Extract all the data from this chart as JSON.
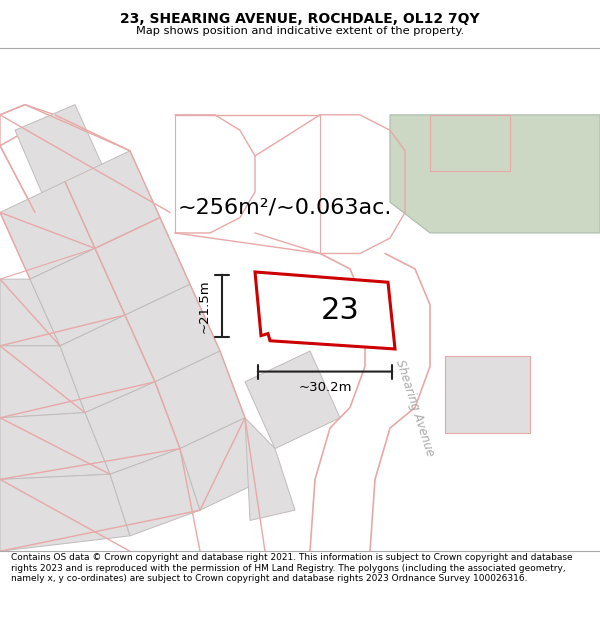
{
  "title_line1": "23, SHEARING AVENUE, ROCHDALE, OL12 7QY",
  "title_line2": "Map shows position and indicative extent of the property.",
  "footer_text": "Contains OS data © Crown copyright and database right 2021. This information is subject to Crown copyright and database rights 2023 and is reproduced with the permission of HM Land Registry. The polygons (including the associated geometry, namely x, y co-ordinates) are subject to Crown copyright and database rights 2023 Ordnance Survey 100026316.",
  "area_label": "~256m²/~0.063ac.",
  "width_label": "~30.2m",
  "height_label": "~21.5m",
  "plot_number": "23",
  "plot_edge_color": "#cc0000",
  "dim_line_color": "#222222",
  "street_label": "Shearing Avenue",
  "green_patch_color": "#ccd8c4",
  "road_pink": "#e8a8a8",
  "block_gray": "#e0dede",
  "block_edge": "#c8c0c0",
  "map_bg": "#f8f6f6"
}
